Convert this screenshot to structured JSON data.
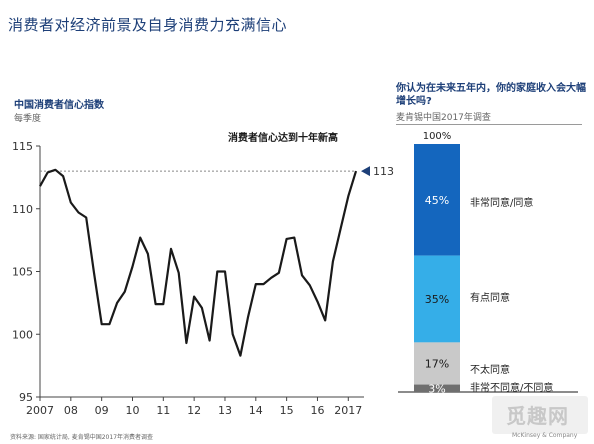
{
  "page": {
    "title": "消费者对经济前景及自身消费力充满信心",
    "source_note": "资料来源: 国家统计局, 麦肯锡中国2017年消费者调查",
    "brand": "McKinsey & Company",
    "watermark": "觅趣网"
  },
  "chart_data": [
    {
      "type": "line",
      "title": "中国消费者信心指数",
      "subtitle": "每季度",
      "ylim": [
        95,
        115
      ],
      "yticks": [
        95,
        100,
        105,
        110,
        115
      ],
      "xticks": [
        "2007",
        "08",
        "09",
        "10",
        "11",
        "12",
        "13",
        "14",
        "15",
        "16",
        "2017"
      ],
      "reference_line": {
        "value": 113
      },
      "annotation": "消费者信心达到十年新高",
      "end_label": "113",
      "grid": false,
      "colors": {
        "line": "#1a1a1a",
        "marker": "#1d3f78",
        "reference": "#888888"
      },
      "series": [
        {
          "values": [
            111.8,
            112.9,
            113.1,
            112.6,
            110.5,
            109.7,
            109.3,
            104.9,
            100.8,
            100.8,
            102.5,
            103.4,
            105.4,
            107.7,
            106.4,
            102.4,
            102.4,
            106.8,
            104.9,
            99.3,
            103.0,
            102.1,
            99.5,
            105.0,
            105.0,
            100.0,
            98.3,
            101.4,
            104.0,
            104.0,
            104.5,
            104.9,
            107.6,
            107.7,
            104.7,
            103.9,
            102.6,
            101.1,
            105.8,
            108.4,
            111.0,
            113.0
          ],
          "x_start": 2007.0,
          "x_step": 0.25
        }
      ]
    },
    {
      "type": "bar",
      "title": "你认为在未来五年内，你的家庭收入会大幅增长吗?",
      "subtitle": "麦肯锡中国2017年调查",
      "total_label": "100%",
      "segments": [
        {
          "category": "非常同意/同意",
          "value": 45,
          "label": "45%",
          "color": "#1466be",
          "text_color": "#ffffff"
        },
        {
          "category": "有点同意",
          "value": 35,
          "label": "35%",
          "color": "#35aee8",
          "text_color": "#1a1a1a"
        },
        {
          "category": "不太同意",
          "value": 17,
          "label": "17%",
          "color": "#c9c9c9",
          "text_color": "#1a1a1a"
        },
        {
          "category": "非常不同意/不同意",
          "value": 3,
          "label": "3%",
          "color": "#6f6f6f",
          "text_color": "#ffffff"
        }
      ]
    }
  ]
}
